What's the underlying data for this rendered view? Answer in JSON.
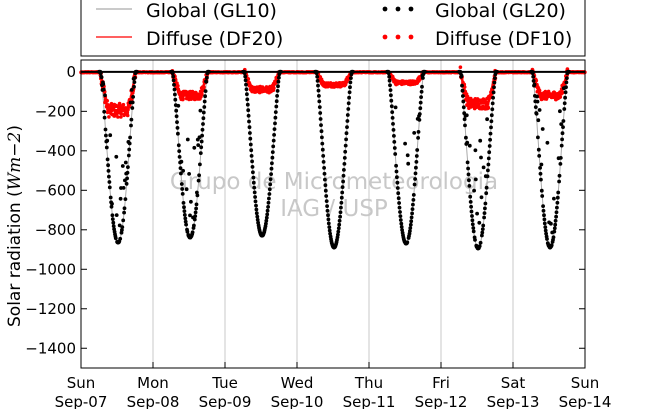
{
  "chart_data": {
    "type": "scatter",
    "ylabel": "Solar radiation ($Wm-2$)",
    "ylabel_parts": {
      "prefix": "Solar radiation (",
      "math": "Wm−2",
      "suffix": ")"
    },
    "ylim": [
      -1500,
      60
    ],
    "yticks": [
      0,
      -200,
      -400,
      -600,
      -800,
      -1000,
      -1200,
      -1400
    ],
    "ytick_labels": [
      "0",
      "−200",
      "−400",
      "−600",
      "−800",
      "−1000",
      "−1200",
      "−1400"
    ],
    "xlim_days": [
      0,
      7
    ],
    "xticks": [
      {
        "day": "Sun",
        "date": "Sep-07"
      },
      {
        "day": "Mon",
        "date": "Sep-08"
      },
      {
        "day": "Tue",
        "date": "Sep-09"
      },
      {
        "day": "Wed",
        "date": "Sep-10"
      },
      {
        "day": "Thu",
        "date": "Sep-11"
      },
      {
        "day": "Fri",
        "date": "Sep-12"
      },
      {
        "day": "Sat",
        "date": "Sep-13"
      },
      {
        "day": "Sun",
        "date": "Sep-14"
      }
    ],
    "vertical_grid": true,
    "zero_line": true,
    "legend_position": "top",
    "watermark": [
      "Grupo de Micrometeorologia",
      "IAG / USP"
    ],
    "series": [
      {
        "name": "Global (GL10)",
        "style": "line",
        "color": "#aaaaaa"
      },
      {
        "name": "Diffuse (DF20)",
        "style": "line",
        "color": "#ff0000"
      },
      {
        "name": "Global (GL20)",
        "style": "points",
        "color": "#000000"
      },
      {
        "name": "Diffuse (DF10)",
        "style": "points",
        "color": "#ff0000"
      }
    ],
    "daily_minimum_global": [
      {
        "date": "Sep-07",
        "value": -865
      },
      {
        "date": "Sep-08",
        "value": -840
      },
      {
        "date": "Sep-09",
        "value": -830
      },
      {
        "date": "Sep-10",
        "value": -890
      },
      {
        "date": "Sep-11",
        "value": -870
      },
      {
        "date": "Sep-12",
        "value": -895
      },
      {
        "date": "Sep-13",
        "value": -890
      }
    ],
    "daily_minimum_diffuse": [
      {
        "date": "Sep-07",
        "value": -195
      },
      {
        "date": "Sep-08",
        "value": -120
      },
      {
        "date": "Sep-09",
        "value": -90
      },
      {
        "date": "Sep-10",
        "value": -65
      },
      {
        "date": "Sep-11",
        "value": -55
      },
      {
        "date": "Sep-12",
        "value": -160
      },
      {
        "date": "Sep-13",
        "value": -120
      }
    ]
  }
}
